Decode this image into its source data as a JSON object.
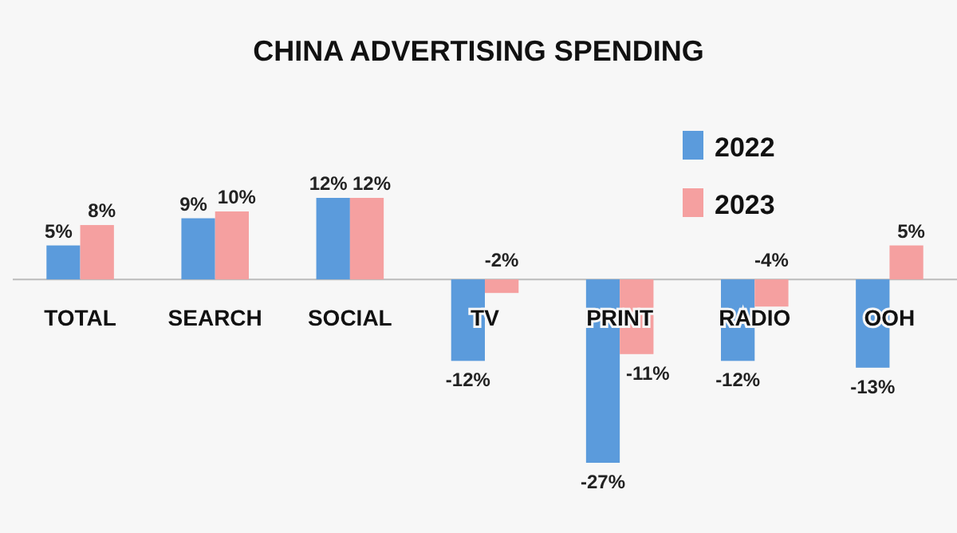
{
  "chart_data": {
    "type": "bar",
    "title": "CHINA ADVERTISING SPENDING",
    "categories": [
      "TOTAL",
      "SEARCH",
      "SOCIAL",
      "TV",
      "PRINT",
      "RADIO",
      "OOH"
    ],
    "series": [
      {
        "name": "2022",
        "color": "#5b9bdc",
        "values": [
          5,
          9,
          12,
          -12,
          -27,
          -12,
          -13
        ],
        "value_labels": [
          "5%",
          "9%",
          "12%",
          "-12%",
          "-27%",
          "-12%",
          "-13%"
        ]
      },
      {
        "name": "2023",
        "color": "#f5a0a0",
        "values": [
          8,
          10,
          12,
          -2,
          -11,
          -4,
          5
        ],
        "value_labels": [
          "8%",
          "10%",
          "12%",
          "-2%",
          "-11%",
          "-4%",
          "5%"
        ]
      }
    ],
    "legend": "top right"
  }
}
